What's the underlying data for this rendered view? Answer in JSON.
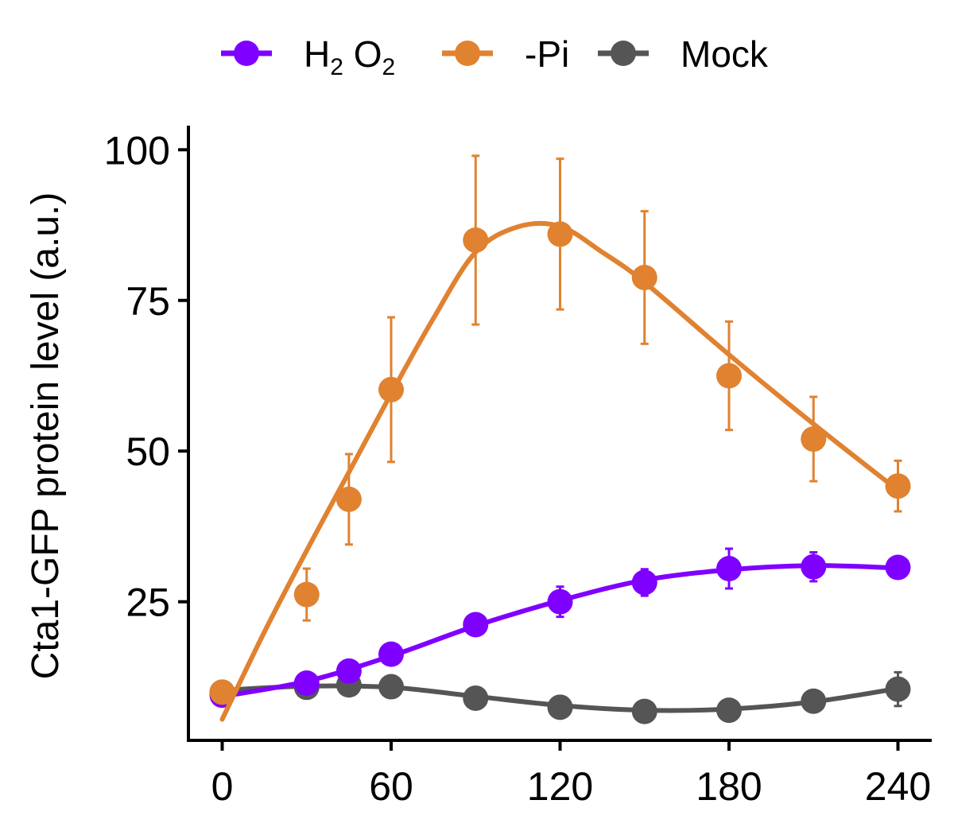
{
  "chart_data": {
    "type": "line",
    "title": "",
    "xlabel": "",
    "ylabel": "Cta1-GFP protein level (a.u.)",
    "xlim": [
      -12,
      252
    ],
    "ylim": [
      2,
      104
    ],
    "xticks": [
      0,
      60,
      120,
      180,
      240
    ],
    "xtick_labels": [
      "0",
      "60",
      "120",
      "180",
      "240"
    ],
    "yticks": [
      25,
      50,
      75,
      100
    ],
    "ytick_labels": [
      "25",
      "50",
      "75",
      "100"
    ],
    "grid": false,
    "legend_position": "top",
    "series": [
      {
        "name": "H2 O2",
        "legend_main_1": "H",
        "legend_sub_1": "2",
        "legend_main_2": " O",
        "legend_sub_2": "2",
        "color": "#8000FF",
        "x": [
          0,
          30,
          45,
          60,
          90,
          120,
          150,
          180,
          210,
          240
        ],
        "y": [
          9.5,
          11.5,
          13.5,
          16.3,
          21.2,
          25.0,
          28.2,
          30.5,
          30.8,
          30.7
        ],
        "err": [
          0.3,
          0.5,
          0.6,
          0.6,
          0.8,
          2.5,
          2.2,
          3.3,
          2.4,
          1.8
        ],
        "fit_x": [
          0,
          30,
          60,
          90,
          120,
          150,
          180,
          210,
          240
        ],
        "fit_y": [
          9.3,
          11.8,
          16.0,
          21.0,
          25.2,
          28.6,
          30.3,
          31.0,
          30.6
        ]
      },
      {
        "name": "-Pi",
        "color": "#E08230",
        "x": [
          0,
          30,
          45,
          60,
          90,
          120,
          150,
          180,
          210,
          240
        ],
        "y": [
          10.0,
          26.2,
          42.0,
          60.2,
          85.0,
          86.0,
          78.8,
          62.5,
          52.0,
          44.2
        ],
        "err": [
          0.2,
          4.3,
          7.5,
          12.0,
          14.0,
          12.5,
          11.0,
          9.0,
          7.0,
          4.2
        ],
        "fit_x": [
          0,
          15,
          30,
          45,
          60,
          75,
          90,
          105,
          120,
          135,
          150,
          180,
          210,
          240
        ],
        "fit_y": [
          5.5,
          20.0,
          33.5,
          46.5,
          59.5,
          72.0,
          83.0,
          87.2,
          87.3,
          83.0,
          78.0,
          66.0,
          54.5,
          43.5
        ]
      },
      {
        "name": "Mock",
        "color": "#555555",
        "x": [
          0,
          30,
          45,
          60,
          90,
          120,
          150,
          180,
          210,
          240
        ],
        "y": [
          10.0,
          10.8,
          11.2,
          10.9,
          9.0,
          7.5,
          6.8,
          7.0,
          8.5,
          10.5
        ],
        "err": [
          0.3,
          0.4,
          0.5,
          0.4,
          0.6,
          0.5,
          0.4,
          0.4,
          0.8,
          2.8
        ],
        "fit_x": [
          0,
          30,
          60,
          90,
          120,
          150,
          180,
          210,
          240
        ],
        "fit_y": [
          10.3,
          11.0,
          10.8,
          9.3,
          7.8,
          7.0,
          7.2,
          8.4,
          10.6
        ]
      }
    ]
  }
}
